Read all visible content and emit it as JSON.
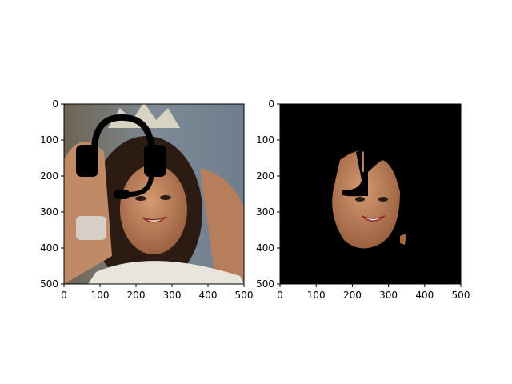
{
  "panels": [
    {
      "name": "original-with-headset",
      "xticks": [
        "0",
        "100",
        "200",
        "300",
        "400",
        "500"
      ],
      "yticks": [
        "0",
        "100",
        "200",
        "300",
        "400",
        "500"
      ],
      "image_extent": [
        0,
        500,
        500,
        0
      ]
    },
    {
      "name": "masked-face",
      "xticks": [
        "0",
        "100",
        "200",
        "300",
        "400",
        "500"
      ],
      "yticks": [
        "0",
        "100",
        "200",
        "300",
        "400",
        "500"
      ],
      "image_extent": [
        0,
        500,
        500,
        0
      ]
    }
  ],
  "colors": {
    "background": "#ffffff",
    "mask": "#000000",
    "skin": "#b97a55",
    "hair": "#2c1b12",
    "backdrop": "#8a8f96",
    "crown": "#d8d2c2"
  }
}
